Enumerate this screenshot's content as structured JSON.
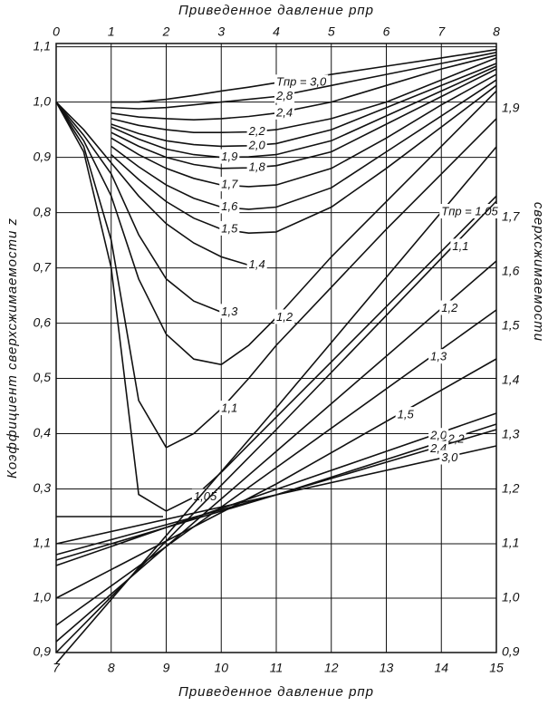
{
  "chart_data": [
    {
      "type": "line",
      "xlabel": "Приведенное давление pпр",
      "ylabel": "Коэффициент сверхсжимаемости z",
      "x": [
        0,
        0.5,
        1,
        1.5,
        2,
        2.5,
        3,
        3.5,
        4,
        5,
        6,
        7,
        8
      ],
      "xlim": [
        0,
        8
      ],
      "xticks": [
        0,
        1,
        2,
        3,
        4,
        5,
        6,
        7,
        8
      ],
      "ylim": [
        0.25,
        1.106
      ],
      "yticks": [
        {
          "value": 0.3,
          "label": "0,3"
        },
        {
          "value": 0.4,
          "label": "0,4"
        },
        {
          "value": 0.5,
          "label": "0,5"
        },
        {
          "value": 0.6,
          "label": "0,6"
        },
        {
          "value": 0.7,
          "label": "0,7"
        },
        {
          "value": 0.8,
          "label": "0,8"
        },
        {
          "value": 0.9,
          "label": "0,9"
        },
        {
          "value": 1.0,
          "label": "1,0"
        },
        {
          "value": 1.1,
          "label": "1,1"
        }
      ],
      "grid": true,
      "series": [
        {
          "name": "Tпр = 3,0",
          "color": "#111",
          "values": [
            null,
            null,
            1.0,
            1.0,
            1.005,
            1.012,
            1.02,
            1.027,
            1.035,
            1.05,
            1.065,
            1.08,
            1.095
          ]
        },
        {
          "name": "2,8",
          "color": "#111",
          "values": [
            null,
            null,
            0.99,
            0.988,
            0.99,
            0.995,
            1.0,
            1.005,
            1.01,
            1.03,
            1.05,
            1.07,
            1.09
          ]
        },
        {
          "name": "2,4",
          "color": "#111",
          "values": [
            null,
            null,
            0.98,
            0.973,
            0.97,
            0.968,
            0.97,
            0.974,
            0.98,
            1.0,
            1.03,
            1.06,
            1.085
          ]
        },
        {
          "name": "2,2",
          "color": "#111",
          "values": [
            null,
            null,
            0.97,
            0.958,
            0.95,
            0.945,
            0.945,
            0.946,
            0.95,
            0.97,
            1.0,
            1.04,
            1.08
          ]
        },
        {
          "name": "2,0",
          "color": "#111",
          "values": [
            null,
            null,
            0.96,
            0.943,
            0.93,
            0.923,
            0.92,
            0.921,
            0.925,
            0.95,
            0.99,
            1.03,
            1.07
          ]
        },
        {
          "name": "1,9",
          "color": "#111",
          "values": [
            null,
            null,
            0.955,
            0.933,
            0.915,
            0.905,
            0.9,
            0.901,
            0.905,
            0.93,
            0.975,
            1.02,
            1.065
          ]
        },
        {
          "name": "1,8",
          "color": "#111",
          "values": [
            null,
            null,
            0.945,
            0.92,
            0.9,
            0.887,
            0.88,
            0.881,
            0.885,
            0.91,
            0.96,
            1.01,
            1.06
          ]
        },
        {
          "name": "1,7",
          "color": "#111",
          "values": [
            null,
            null,
            0.935,
            0.905,
            0.88,
            0.862,
            0.85,
            0.847,
            0.85,
            0.88,
            0.935,
            0.995,
            1.05
          ]
        },
        {
          "name": "1,6",
          "color": "#111",
          "values": [
            null,
            null,
            0.92,
            0.883,
            0.85,
            0.826,
            0.81,
            0.806,
            0.81,
            0.845,
            0.91,
            0.975,
            1.04
          ]
        },
        {
          "name": "1,5",
          "color": "#111",
          "values": [
            null,
            null,
            0.905,
            0.86,
            0.82,
            0.79,
            0.77,
            0.763,
            0.765,
            0.81,
            0.88,
            0.955,
            1.03
          ]
        },
        {
          "name": "1,4",
          "color": "#111",
          "values": [
            1.0,
            0.95,
            0.89,
            0.83,
            0.78,
            0.745,
            0.72,
            0.705,
            null,
            null,
            null,
            null,
            null
          ]
        },
        {
          "name": "1,3",
          "color": "#111",
          "values": [
            1.0,
            0.94,
            0.87,
            0.76,
            0.68,
            0.64,
            0.62,
            null,
            null,
            null,
            null,
            null,
            null
          ]
        },
        {
          "name": "1,2",
          "color": "#111",
          "values": [
            1.0,
            0.93,
            0.83,
            0.68,
            0.58,
            0.535,
            0.525,
            0.56,
            0.61,
            0.72,
            0.82,
            0.92,
            1.02
          ]
        },
        {
          "name": "1,1",
          "color": "#111",
          "values": [
            1.0,
            0.92,
            0.75,
            0.46,
            0.375,
            0.4,
            0.445,
            0.5,
            0.56,
            0.665,
            0.77,
            0.87,
            0.97
          ]
        },
        {
          "name": "1,05",
          "color": "#111",
          "values": [
            1.0,
            0.91,
            0.7,
            0.29,
            0.26,
            0.285,
            0.33,
            0.38,
            0.43,
            0.53,
            0.63,
            0.73,
            0.83
          ]
        }
      ]
    },
    {
      "type": "line",
      "xlabel": "Приведенное давление pпр",
      "ylabel": "сверхсжимаемости",
      "x": [
        7,
        11,
        15
      ],
      "xlim": [
        7,
        15
      ],
      "xticks": [
        7,
        8,
        9,
        10,
        11,
        12,
        13,
        14,
        15
      ],
      "ylim": [
        0.9,
        2.02
      ],
      "yticks": [
        {
          "value": 0.9,
          "label": "0,9"
        },
        {
          "value": 1.0,
          "label": "1,0"
        },
        {
          "value": 1.1,
          "label": "1,1"
        },
        {
          "value": 1.2,
          "label": "1,2"
        },
        {
          "value": 1.3,
          "label": "1,3"
        },
        {
          "value": 1.4,
          "label": "1,4"
        },
        {
          "value": 1.5,
          "label": "1,5"
        },
        {
          "value": 1.6,
          "label": "1,6"
        },
        {
          "value": 1.7,
          "label": "1,7"
        },
        {
          "value": 1.9,
          "label": "1,9"
        }
      ],
      "grid": true,
      "series": [
        {
          "name": "Tпр = 1,05",
          "color": "#111",
          "values": [
            0.88,
            1.35,
            1.83
          ]
        },
        {
          "name": "1,1",
          "color": "#111",
          "values": [
            0.9,
            1.31,
            1.73
          ]
        },
        {
          "name": "1,2",
          "color": "#111",
          "values": [
            0.92,
            1.27,
            1.62
          ]
        },
        {
          "name": "1,3",
          "color": "#111",
          "values": [
            0.95,
            1.24,
            1.53
          ]
        },
        {
          "name": "1,5",
          "color": "#111",
          "values": [
            1.0,
            1.21,
            1.44
          ]
        },
        {
          "name": "2,0",
          "color": "#111",
          "values": [
            1.06,
            1.2,
            1.34
          ]
        },
        {
          "name": "2,2",
          "color": "#111",
          "values": [
            1.07,
            1.19,
            1.32
          ]
        },
        {
          "name": "2,4",
          "color": "#111",
          "values": [
            1.08,
            1.19,
            1.31
          ]
        },
        {
          "name": "3,0",
          "color": "#111",
          "values": [
            1.1,
            1.19,
            1.28
          ]
        }
      ]
    }
  ]
}
